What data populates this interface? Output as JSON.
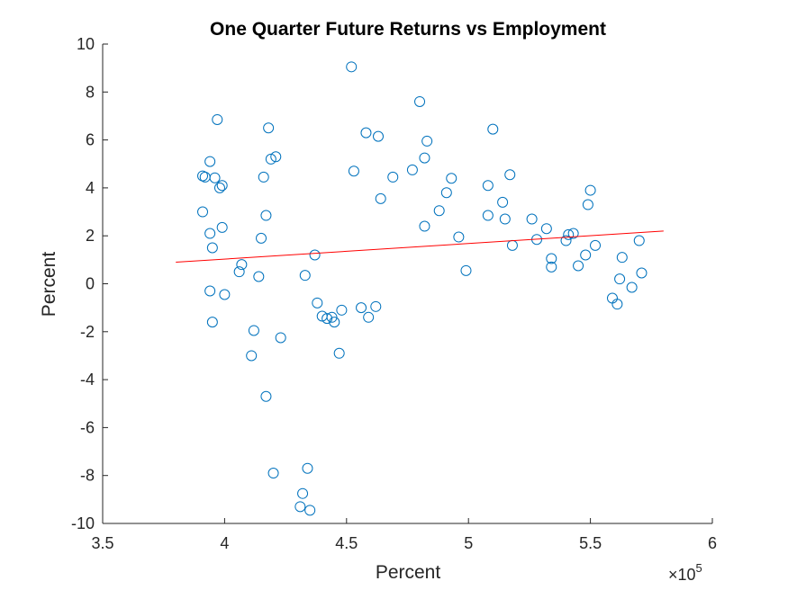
{
  "chart_data": {
    "type": "scatter",
    "title": "One Quarter Future Returns vs Employment",
    "xlabel": "Percent",
    "ylabel": "Percent",
    "x_exponent_base": "×10",
    "x_exponent": "5",
    "xlim": [
      3.5,
      6
    ],
    "ylim": [
      -10,
      10
    ],
    "xticks": [
      "3.5",
      "4",
      "4.5",
      "5",
      "5.5",
      "6"
    ],
    "yticks": [
      "10",
      "8",
      "6",
      "4",
      "2",
      "0",
      "-2",
      "-4",
      "-6",
      "-8",
      "-10"
    ],
    "xtick_values": [
      3.5,
      4,
      4.5,
      5,
      5.5,
      6
    ],
    "ytick_values": [
      10,
      8,
      6,
      4,
      2,
      0,
      -2,
      -4,
      -6,
      -8,
      -10
    ],
    "grid": false,
    "marker_color": "#0072BD",
    "fit_color": "#FF0000",
    "fit_line": {
      "x": [
        3.8,
        5.8
      ],
      "y": [
        0.9,
        2.2
      ]
    },
    "points": [
      [
        3.91,
        4.5
      ],
      [
        3.92,
        4.45
      ],
      [
        3.94,
        5.1
      ],
      [
        3.96,
        4.42
      ],
      [
        3.97,
        6.85
      ],
      [
        3.98,
        4.0
      ],
      [
        3.99,
        4.1
      ],
      [
        3.91,
        3.0
      ],
      [
        3.94,
        2.1
      ],
      [
        3.95,
        1.5
      ],
      [
        3.99,
        2.35
      ],
      [
        3.94,
        -0.3
      ],
      [
        4.0,
        -0.45
      ],
      [
        3.95,
        -1.6
      ],
      [
        4.06,
        0.5
      ],
      [
        4.07,
        0.8
      ],
      [
        4.12,
        -1.95
      ],
      [
        4.11,
        -3.0
      ],
      [
        4.14,
        0.3
      ],
      [
        4.15,
        1.9
      ],
      [
        4.16,
        4.45
      ],
      [
        4.17,
        2.85
      ],
      [
        4.18,
        6.5
      ],
      [
        4.19,
        5.2
      ],
      [
        4.21,
        5.3
      ],
      [
        4.17,
        -4.7
      ],
      [
        4.2,
        -7.9
      ],
      [
        4.23,
        -2.25
      ],
      [
        4.31,
        -9.3
      ],
      [
        4.32,
        -8.75
      ],
      [
        4.34,
        -7.7
      ],
      [
        4.35,
        -9.45
      ],
      [
        4.33,
        0.35
      ],
      [
        4.37,
        1.2
      ],
      [
        4.38,
        -0.8
      ],
      [
        4.4,
        -1.35
      ],
      [
        4.42,
        -1.45
      ],
      [
        4.44,
        -1.4
      ],
      [
        4.45,
        -1.6
      ],
      [
        4.47,
        -2.9
      ],
      [
        4.48,
        -1.1
      ],
      [
        4.52,
        9.05
      ],
      [
        4.53,
        4.7
      ],
      [
        4.56,
        -1.0
      ],
      [
        4.58,
        6.3
      ],
      [
        4.59,
        -1.4
      ],
      [
        4.63,
        6.15
      ],
      [
        4.62,
        -0.95
      ],
      [
        4.64,
        3.55
      ],
      [
        4.69,
        4.45
      ],
      [
        4.77,
        4.75
      ],
      [
        4.8,
        7.6
      ],
      [
        4.82,
        5.25
      ],
      [
        4.82,
        2.4
      ],
      [
        4.83,
        5.95
      ],
      [
        4.88,
        3.05
      ],
      [
        4.91,
        3.8
      ],
      [
        4.93,
        4.4
      ],
      [
        4.96,
        1.95
      ],
      [
        4.99,
        0.55
      ],
      [
        5.08,
        4.1
      ],
      [
        5.08,
        2.85
      ],
      [
        5.1,
        6.45
      ],
      [
        5.14,
        3.4
      ],
      [
        5.15,
        2.7
      ],
      [
        5.17,
        4.55
      ],
      [
        5.18,
        1.6
      ],
      [
        5.26,
        2.7
      ],
      [
        5.28,
        1.85
      ],
      [
        5.32,
        2.3
      ],
      [
        5.34,
        1.05
      ],
      [
        5.34,
        0.7
      ],
      [
        5.4,
        1.8
      ],
      [
        5.41,
        2.05
      ],
      [
        5.43,
        2.1
      ],
      [
        5.45,
        0.75
      ],
      [
        5.48,
        1.2
      ],
      [
        5.49,
        3.3
      ],
      [
        5.5,
        3.9
      ],
      [
        5.52,
        1.6
      ],
      [
        5.59,
        -0.6
      ],
      [
        5.61,
        -0.85
      ],
      [
        5.62,
        0.2
      ],
      [
        5.63,
        1.1
      ],
      [
        5.67,
        -0.15
      ],
      [
        5.7,
        1.8
      ],
      [
        5.71,
        0.45
      ]
    ]
  }
}
